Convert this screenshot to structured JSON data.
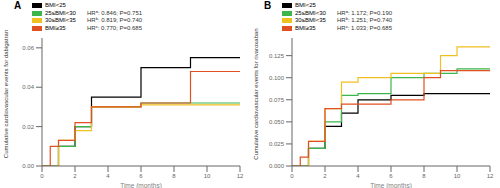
{
  "chart_data": [
    {
      "type": "step",
      "title": "A",
      "xlabel": "Time (months)",
      "ylabel": "Cumulative cardiovascular events for dabigatran",
      "xlim": [
        0,
        12
      ],
      "ylim": [
        0,
        0.065
      ],
      "xticks": [
        0,
        2,
        4,
        6,
        8,
        10,
        12
      ],
      "yticks": [
        {
          "value": 0,
          "label": "0.00"
        },
        0.02,
        0.04,
        0.06
      ],
      "legend": "upper left",
      "series": [
        {
          "name": "BMI<25",
          "color": "#000000",
          "x": [
            0,
            1,
            2,
            3,
            6,
            9,
            12
          ],
          "values": [
            0,
            0.01,
            0.02,
            0.035,
            0.05,
            0.055,
            0.055
          ]
        },
        {
          "name": "25≤BMI<30",
          "color": "#3cb54a",
          "annotation": "HRᵃ: 0.846; P=0.751",
          "x": [
            0,
            1,
            2,
            3,
            6,
            12
          ],
          "values": [
            0,
            0.01,
            0.02,
            0.03,
            0.032,
            0.032
          ]
        },
        {
          "name": "30≤BMI<35",
          "color": "#f0c020",
          "annotation": "HRᵇ: 0.819; P=0.740",
          "x": [
            0,
            1,
            2,
            3,
            6,
            12
          ],
          "values": [
            0,
            0.013,
            0.018,
            0.03,
            0.031,
            0.031
          ]
        },
        {
          "name": "BMI≥35",
          "color": "#e05020",
          "annotation": "HRᶜ: 0.770; P=0.685",
          "x": [
            0,
            0.5,
            1,
            2,
            3,
            6,
            9,
            12
          ],
          "values": [
            0,
            0.01,
            0.013,
            0.022,
            0.03,
            0.032,
            0.048,
            0.048
          ]
        }
      ]
    },
    {
      "type": "step",
      "title": "B",
      "xlabel": "Time (months)",
      "ylabel": "Cumulative cardiovascular events for rivaroxaban",
      "xlim": [
        0,
        12
      ],
      "ylim": [
        0,
        0.145
      ],
      "xticks": [
        0,
        2,
        4,
        6,
        8,
        10,
        12
      ],
      "yticks": [
        {
          "value": 0,
          "label": "0.000"
        },
        0.025,
        {
          "value": 0.05,
          "label": "0.050"
        },
        0.075,
        {
          "value": 0.1,
          "label": "0.100"
        },
        0.125
      ],
      "legend": "upper left",
      "series": [
        {
          "name": "BMI<25",
          "color": "#000000",
          "x": [
            0,
            1,
            2,
            3,
            4,
            6,
            8,
            12
          ],
          "values": [
            0,
            0.02,
            0.045,
            0.06,
            0.075,
            0.08,
            0.082,
            0.082
          ]
        },
        {
          "name": "25≤BMI<30",
          "color": "#3cb54a",
          "annotation": "HRᵃ: 1.172; P=0.190",
          "x": [
            0,
            1,
            2,
            3,
            4,
            6,
            8,
            10,
            12
          ],
          "values": [
            0,
            0.02,
            0.05,
            0.08,
            0.082,
            0.1,
            0.105,
            0.11,
            0.11
          ]
        },
        {
          "name": "30≤BMI<35",
          "color": "#f0c020",
          "annotation": "HRᵇ: 1.251; P=0.740",
          "x": [
            0,
            1,
            2,
            3,
            4,
            6,
            9,
            10,
            12
          ],
          "values": [
            0,
            0.028,
            0.065,
            0.095,
            0.1,
            0.105,
            0.125,
            0.135,
            0.135
          ]
        },
        {
          "name": "BMI≥35",
          "color": "#e05020",
          "annotation": "HRᶜ: 1.033; P=0.685",
          "x": [
            0,
            0.5,
            1,
            2,
            3,
            6,
            8,
            9,
            12
          ],
          "values": [
            0,
            0.01,
            0.028,
            0.065,
            0.07,
            0.075,
            0.1,
            0.108,
            0.108
          ]
        }
      ]
    }
  ]
}
